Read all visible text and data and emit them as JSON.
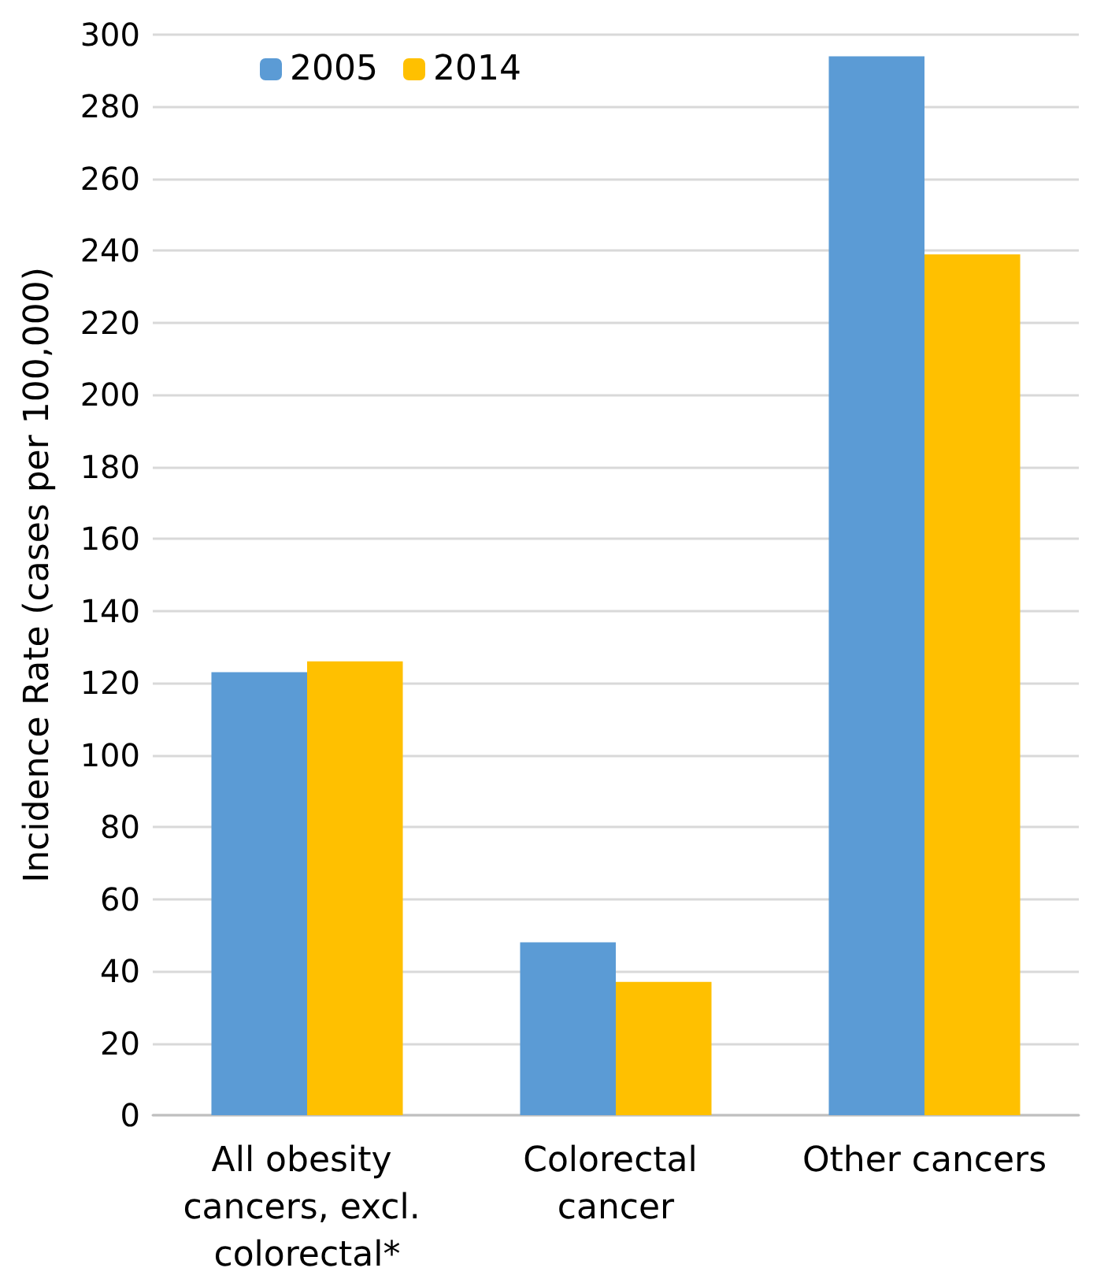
{
  "chart_data": {
    "type": "bar",
    "ylabel": "Incidence Rate (cases per 100,000)",
    "categories": [
      "All obesity cancers, excl. colorectal*",
      "Colorectal cancer",
      "Other cancers"
    ],
    "series": [
      {
        "name": "2005",
        "color": "#5b9bd5",
        "values": [
          123,
          48,
          294
        ]
      },
      {
        "name": "2014",
        "color": "#ffc000",
        "values": [
          126,
          37,
          239
        ]
      }
    ],
    "ylim": [
      0,
      300
    ],
    "yticks": [
      0,
      20,
      40,
      60,
      80,
      100,
      120,
      140,
      160,
      180,
      200,
      220,
      240,
      260,
      280,
      300
    ],
    "grid": "y",
    "legend": "top left"
  }
}
